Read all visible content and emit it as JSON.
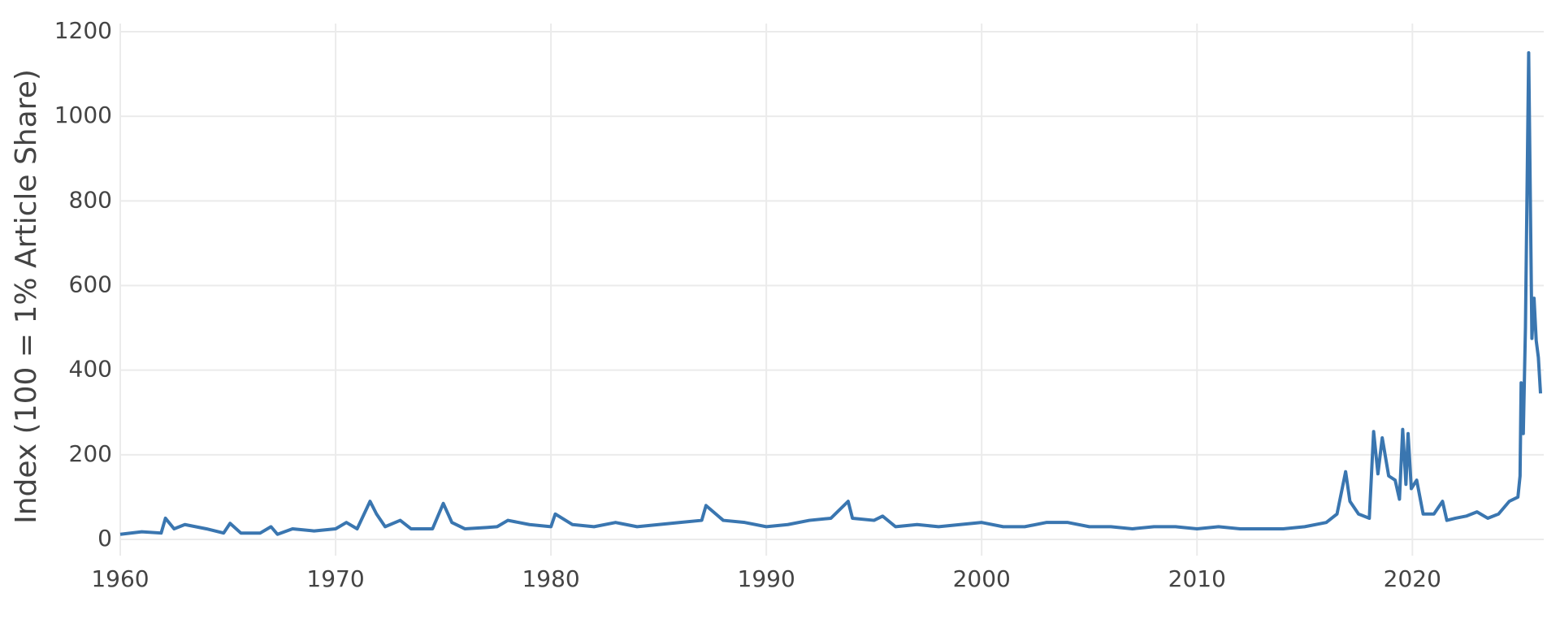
{
  "chart_data": {
    "type": "line",
    "y_label": "Index (100 = 1% Article Share)",
    "xlim": [
      1960,
      2026.1
    ],
    "xticks": [
      1960,
      1970,
      1980,
      1990,
      2000,
      2010,
      2020
    ],
    "ylim": [
      0,
      1200
    ],
    "yticks": [
      0,
      200,
      400,
      600,
      800,
      1000,
      1200
    ],
    "grid": true,
    "series": [
      {
        "color": "#3a76b0",
        "x": [
          1960,
          1961,
          1961.9,
          1962.1,
          1962.5,
          1963,
          1964,
          1964.8,
          1965.1,
          1965.6,
          1966.5,
          1967,
          1967.3,
          1968,
          1969,
          1970,
          1970.5,
          1971,
          1971.6,
          1971.9,
          1972.3,
          1973,
          1973.5,
          1974.5,
          1975,
          1975.4,
          1976,
          1977,
          1977.5,
          1978,
          1979,
          1980,
          1980.2,
          1981,
          1982,
          1983,
          1984,
          1985,
          1986,
          1987,
          1987.2,
          1988,
          1989,
          1990,
          1991,
          1992,
          1993,
          1993.8,
          1994,
          1995,
          1995.4,
          1996,
          1997,
          1998,
          1999,
          2000,
          2001,
          2002,
          2003,
          2004,
          2005,
          2006,
          2007,
          2008,
          2009,
          2010,
          2011,
          2012,
          2013,
          2014,
          2015,
          2016,
          2016.5,
          2016.9,
          2017.1,
          2017.5,
          2018,
          2018.2,
          2018.4,
          2018.6,
          2018.9,
          2019.2,
          2019.4,
          2019.55,
          2019.7,
          2019.8,
          2019.95,
          2020.2,
          2020.5,
          2021,
          2021.4,
          2021.6,
          2022,
          2022.5,
          2023,
          2023.5,
          2024,
          2024.5,
          2024.9,
          2025,
          2025.05,
          2025.15,
          2025.25,
          2025.4,
          2025.5,
          2025.55,
          2025.65,
          2025.75,
          2025.85,
          2025.95
        ],
        "values": [
          12,
          18,
          15,
          50,
          25,
          35,
          25,
          15,
          38,
          15,
          15,
          30,
          12,
          25,
          20,
          25,
          40,
          25,
          90,
          60,
          30,
          45,
          25,
          25,
          85,
          40,
          25,
          28,
          30,
          45,
          35,
          30,
          60,
          35,
          30,
          40,
          30,
          35,
          40,
          45,
          80,
          45,
          40,
          30,
          35,
          45,
          50,
          90,
          50,
          45,
          55,
          30,
          35,
          30,
          35,
          40,
          30,
          30,
          40,
          40,
          30,
          30,
          25,
          30,
          30,
          25,
          30,
          25,
          25,
          25,
          30,
          40,
          60,
          160,
          90,
          60,
          50,
          255,
          155,
          240,
          150,
          140,
          95,
          260,
          130,
          250,
          120,
          140,
          60,
          60,
          90,
          45,
          50,
          55,
          65,
          50,
          60,
          90,
          100,
          150,
          370,
          250,
          500,
          1150,
          700,
          475,
          570,
          470,
          430,
          345
        ]
      }
    ]
  }
}
